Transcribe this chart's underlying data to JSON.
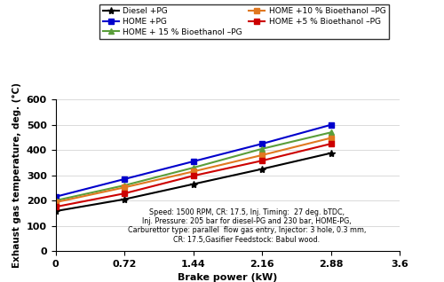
{
  "x": [
    0,
    0.72,
    1.44,
    2.16,
    2.88
  ],
  "series": [
    {
      "label": "Diesel +PG",
      "color": "black",
      "marker": "*",
      "markersize": 6,
      "values": [
        158,
        205,
        265,
        325,
        388
      ]
    },
    {
      "label": "HOME +PG",
      "color": "#0000cc",
      "marker": "s",
      "markersize": 5,
      "values": [
        215,
        285,
        355,
        425,
        500
      ]
    },
    {
      "label": "HOME + 15 % Bioethanol –PG",
      "color": "#5a9e3a",
      "marker": "^",
      "markersize": 5,
      "values": [
        200,
        260,
        330,
        405,
        470
      ]
    },
    {
      "label": "HOME +10 % Bioethanol –PG",
      "color": "#e07820",
      "marker": "s",
      "markersize": 5,
      "values": [
        193,
        252,
        315,
        380,
        448
      ]
    },
    {
      "label": "HOME +5 % Bioethanol –PG",
      "color": "#cc0000",
      "marker": "s",
      "markersize": 5,
      "values": [
        175,
        228,
        298,
        358,
        425
      ]
    }
  ],
  "xlabel": "Brake power (kW)",
  "ylabel": "Exhaust gas temperature, deg. (°C)",
  "xlim": [
    0,
    3.6
  ],
  "ylim": [
    0,
    600
  ],
  "xticks": [
    0,
    0.72,
    1.44,
    2.16,
    2.88,
    3.6
  ],
  "yticks": [
    0,
    100,
    200,
    300,
    400,
    500,
    600
  ],
  "annotation_lines": [
    "Speed: 1500 RPM, CR: 17.5, Inj. Timing:  27 deg. bTDC,",
    "Inj. Pressure: 205 bar for diesel-PG and 230 bar, HOME-PG,",
    "Carburettor type: parallel  flow gas entry, Injector: 3 hole, 0.3 mm,",
    "CR: 17.5,Gasifier Feedstock: Babul wood."
  ],
  "legend_order": [
    0,
    1,
    2,
    3,
    4
  ],
  "figsize": [
    5.0,
    3.18
  ],
  "dpi": 100
}
